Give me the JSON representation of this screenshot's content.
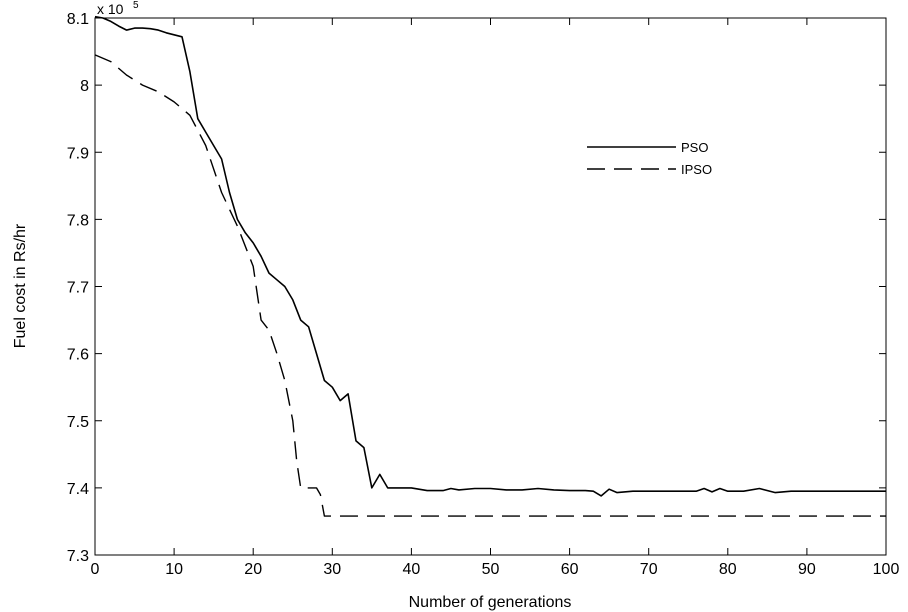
{
  "chart_data": {
    "type": "line",
    "title": "",
    "xlabel": "Number of generations",
    "ylabel": "Fuel cost in Rs/hr",
    "y_multiplier_label": "x 10",
    "y_multiplier_exponent": "5",
    "xlim": [
      0,
      100
    ],
    "ylim": [
      7.3,
      8.1
    ],
    "xticks": [
      0,
      10,
      20,
      30,
      40,
      50,
      60,
      70,
      80,
      90,
      100
    ],
    "yticks": [
      7.3,
      7.4,
      7.5,
      7.6,
      7.7,
      7.8,
      7.9,
      8.0,
      8.1
    ],
    "ytick_labels": [
      "7.3",
      "7.4",
      "7.5",
      "7.6",
      "7.7",
      "7.8",
      "7.9",
      "8",
      "8.1"
    ],
    "grid": false,
    "legend_position": "top-right",
    "series": [
      {
        "name": "PSO",
        "style": "solid",
        "color": "#000000",
        "x": [
          0,
          1,
          2,
          3,
          4,
          5,
          6,
          7,
          8,
          9,
          10,
          11,
          12,
          13,
          14,
          15,
          16,
          17,
          18,
          19,
          20,
          21,
          22,
          23,
          24,
          25,
          26,
          27,
          28,
          29,
          30,
          31,
          32,
          33,
          34,
          35,
          36,
          37,
          38,
          40,
          42,
          44,
          45,
          46,
          48,
          50,
          52,
          54,
          56,
          58,
          60,
          62,
          63,
          64,
          65,
          66,
          68,
          70,
          72,
          74,
          76,
          77,
          78,
          79,
          80,
          82,
          84,
          86,
          88,
          90,
          95,
          100
        ],
        "y": [
          8.102,
          8.1,
          8.095,
          8.088,
          8.082,
          8.085,
          8.085,
          8.084,
          8.082,
          8.078,
          8.075,
          8.072,
          8.02,
          7.95,
          7.93,
          7.91,
          7.89,
          7.84,
          7.8,
          7.78,
          7.765,
          7.745,
          7.72,
          7.71,
          7.7,
          7.68,
          7.65,
          7.64,
          7.6,
          7.56,
          7.55,
          7.53,
          7.54,
          7.47,
          7.46,
          7.4,
          7.42,
          7.4,
          7.4,
          7.4,
          7.396,
          7.396,
          7.399,
          7.397,
          7.399,
          7.399,
          7.397,
          7.397,
          7.399,
          7.397,
          7.396,
          7.396,
          7.395,
          7.388,
          7.398,
          7.393,
          7.395,
          7.395,
          7.395,
          7.395,
          7.395,
          7.399,
          7.394,
          7.399,
          7.395,
          7.395,
          7.399,
          7.393,
          7.395,
          7.395,
          7.395,
          7.395
        ]
      },
      {
        "name": "IPSO",
        "style": "dashed",
        "color": "#000000",
        "x": [
          0,
          2,
          4,
          6,
          8,
          10,
          12,
          14,
          16,
          18,
          20,
          21,
          22,
          23,
          24,
          25,
          25.5,
          26,
          27,
          28,
          28.5,
          29,
          30,
          40,
          50,
          60,
          70,
          80,
          90,
          100
        ],
        "y": [
          8.045,
          8.035,
          8.015,
          8.0,
          7.99,
          7.975,
          7.955,
          7.91,
          7.84,
          7.79,
          7.73,
          7.65,
          7.635,
          7.6,
          7.56,
          7.5,
          7.44,
          7.4,
          7.4,
          7.4,
          7.39,
          7.358,
          7.358,
          7.358,
          7.358,
          7.358,
          7.358,
          7.358,
          7.358,
          7.358
        ]
      }
    ]
  }
}
